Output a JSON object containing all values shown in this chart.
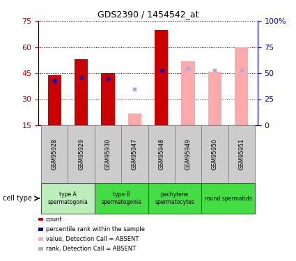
{
  "title": "GDS2390 / 1454542_at",
  "samples": [
    "GSM95928",
    "GSM95929",
    "GSM95930",
    "GSM95947",
    "GSM95948",
    "GSM95949",
    "GSM95950",
    "GSM95951"
  ],
  "count_values": [
    44.0,
    53.0,
    45.0,
    null,
    70.0,
    null,
    null,
    null
  ],
  "rank_values": [
    43.0,
    46.0,
    45.0,
    null,
    53.0,
    null,
    null,
    null
  ],
  "absent_count_values": [
    null,
    null,
    null,
    22.0,
    null,
    52.0,
    46.0,
    60.0
  ],
  "absent_rank_values": [
    null,
    null,
    null,
    35.0,
    null,
    55.0,
    53.0,
    53.0
  ],
  "present_bar_color": "#cc0000",
  "absent_bar_color": "#ffaaaa",
  "present_rank_color": "#0000cc",
  "absent_rank_color": "#aaaadd",
  "ylim_left": [
    15,
    75
  ],
  "ylim_right": [
    0,
    100
  ],
  "left_yticks": [
    15,
    30,
    45,
    60,
    75
  ],
  "right_yticks": [
    0,
    25,
    50,
    75,
    100
  ],
  "right_yticklabels": [
    "0",
    "25",
    "50",
    "75",
    "100%"
  ],
  "group_configs": [
    {
      "indices": [
        0,
        1
      ],
      "label": "type A\nspermatogonia",
      "color": "#bbeebb"
    },
    {
      "indices": [
        2,
        3
      ],
      "label": "type B\nspermatogonia",
      "color": "#44dd44"
    },
    {
      "indices": [
        4,
        5
      ],
      "label": "pachytene\nspermatocytes",
      "color": "#44dd44"
    },
    {
      "indices": [
        6,
        7
      ],
      "label": "round spermatids",
      "color": "#44dd44"
    }
  ],
  "legend_items": [
    {
      "label": "count",
      "color": "#cc0000"
    },
    {
      "label": "percentile rank within the sample",
      "color": "#0000cc"
    },
    {
      "label": "value, Detection Call = ABSENT",
      "color": "#ffaaaa"
    },
    {
      "label": "rank, Detection Call = ABSENT",
      "color": "#aaaadd"
    }
  ],
  "bar_width": 0.5,
  "grid_color": "#000000",
  "grid_linestyle": ":",
  "background_color": "#ffffff",
  "left_axis_color": "#cc0000",
  "right_axis_color": "#0000cc",
  "sample_box_color": "#cccccc",
  "sample_box_edge": "#888888"
}
